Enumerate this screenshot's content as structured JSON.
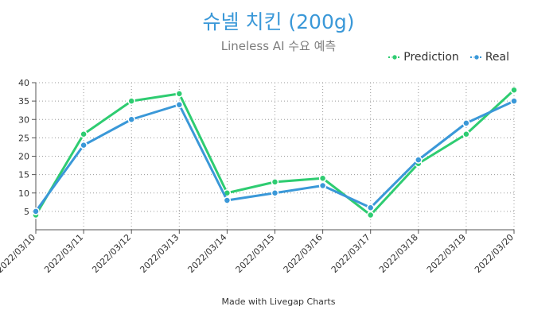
{
  "header": {
    "title": "슈넬 치킨 (200g)",
    "subtitle": "Lineless AI 수요 예측"
  },
  "footer": {
    "credit": "Made with Livegap Charts"
  },
  "chart_data": {
    "type": "line",
    "title": "슈넬 치킨 (200g)",
    "subtitle": "Lineless AI 수요 예측",
    "xlabel": "",
    "ylabel": "",
    "categories": [
      "2022/03/10",
      "2022/03/11",
      "2022/03/12",
      "2022/03/13",
      "2022/03/14",
      "2022/03/15",
      "2022/03/16",
      "2022/03/17",
      "2022/03/18",
      "2022/03/19",
      "2022/03/20"
    ],
    "series": [
      {
        "name": "Prediction",
        "color": "#2ecc71",
        "values": [
          4,
          26,
          35,
          37,
          10,
          13,
          14,
          4,
          18,
          26,
          38
        ]
      },
      {
        "name": "Real",
        "color": "#3a98d8",
        "values": [
          5,
          23,
          30,
          34,
          8,
          10,
          12,
          6,
          19,
          29,
          35
        ]
      }
    ],
    "yticks": [
      5,
      10,
      15,
      20,
      25,
      30,
      35,
      40
    ],
    "ylim": [
      0,
      40
    ],
    "grid": true,
    "legend_position": "top-right"
  }
}
